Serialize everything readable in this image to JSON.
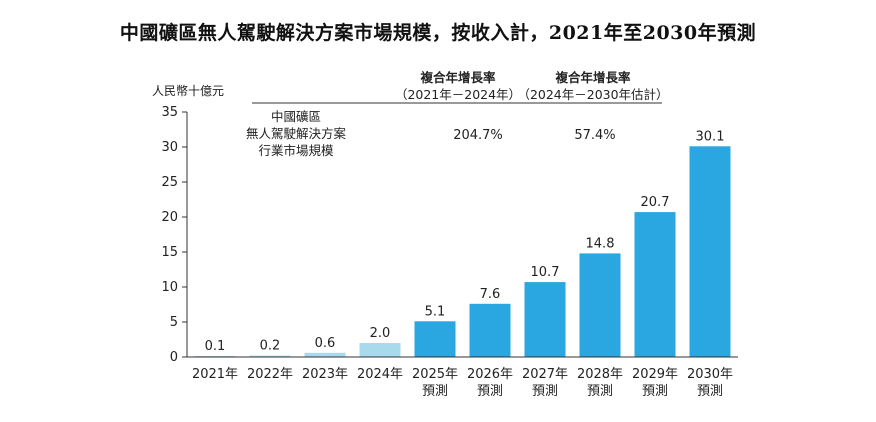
{
  "title": "中國礦區無人駕駛解決方案市場規模，按收入計，2021年至2030年預測",
  "chart_data": {
    "type": "bar",
    "title": "中國礦區無人駕駛解決方案市場規模，按收入計，2021年至2030年預測",
    "ylabel": "人民幣十億元",
    "ylim": [
      0,
      35
    ],
    "yticks": [
      "0",
      "5",
      "10",
      "15",
      "20",
      "25",
      "30",
      "35"
    ],
    "legend_label": [
      "中國礦區",
      "無人駕駛解決方案",
      "行業市場規模"
    ],
    "categories": [
      [
        "2021年"
      ],
      [
        "2022年"
      ],
      [
        "2023年"
      ],
      [
        "2024年"
      ],
      [
        "2025年",
        "預測"
      ],
      [
        "2026年",
        "預測"
      ],
      [
        "2027年",
        "預測"
      ],
      [
        "2028年",
        "預測"
      ],
      [
        "2029年",
        "預測"
      ],
      [
        "2030年",
        "預測"
      ]
    ],
    "values": [
      0.1,
      0.2,
      0.6,
      2.0,
      5.1,
      7.6,
      10.7,
      14.8,
      20.7,
      30.1
    ],
    "value_labels": [
      "0.1",
      "0.2",
      "0.6",
      "2.0",
      "5.1",
      "7.6",
      "10.7",
      "14.8",
      "20.7",
      "30.1"
    ],
    "colors": {
      "historical": "#a8daee",
      "forecast": "#2aa6e0",
      "axis": "#333333"
    },
    "cagr": [
      {
        "heading": "複合年增長率",
        "period": "（2021年－2024年）",
        "value": "204.7%"
      },
      {
        "heading": "複合年增長率",
        "period": "（2024年－2030年估計）",
        "value": "57.4%"
      }
    ]
  }
}
